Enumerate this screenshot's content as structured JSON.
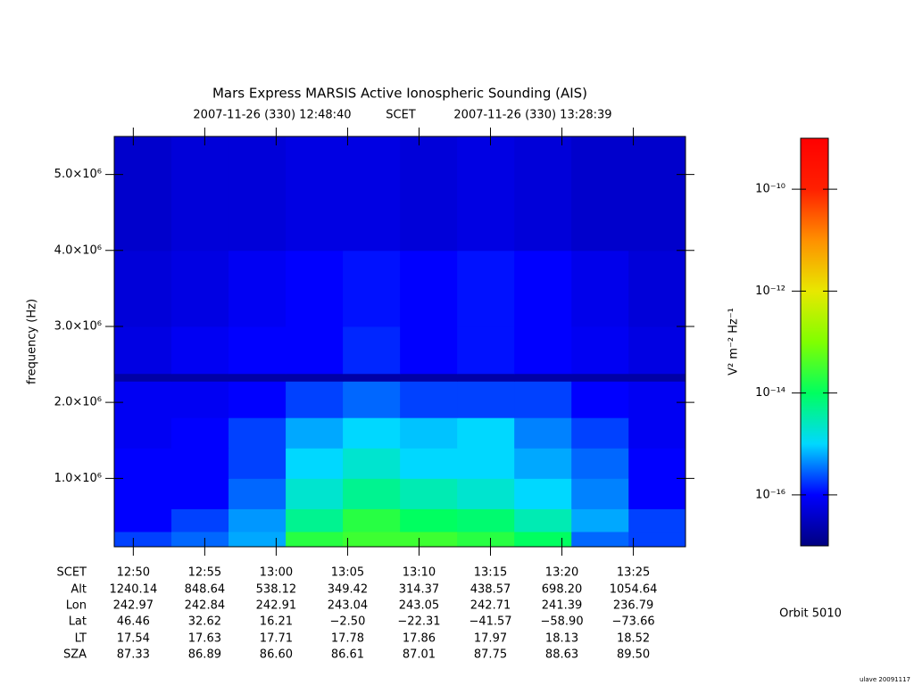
{
  "chart_data": {
    "type": "heatmap",
    "title": "Mars Express MARSIS Active Ionospheric Sounding (AIS)",
    "subtitle_start": "2007-11-26 (330) 12:48:40",
    "subtitle_mid": "SCET",
    "subtitle_end": "2007-11-26 (330) 13:28:39",
    "ylabel": "frequency (Hz)",
    "xlim": [
      "12:48:40",
      "13:28:39"
    ],
    "xticks": [
      "12:50",
      "12:55",
      "13:00",
      "13:05",
      "13:10",
      "13:15",
      "13:20",
      "13:25"
    ],
    "ylim": [
      100000,
      5500000
    ],
    "yticks": [
      {
        "value": 1000000,
        "label": "1.0×10⁶"
      },
      {
        "value": 2000000,
        "label": "2.0×10⁶"
      },
      {
        "value": 3000000,
        "label": "3.0×10⁶"
      },
      {
        "value": 4000000,
        "label": "4.0×10⁶"
      },
      {
        "value": 5000000,
        "label": "5.0×10⁶"
      }
    ],
    "xbins": [
      "12:48:40",
      "12:52:40",
      "12:56:40",
      "13:00:40",
      "13:04:40",
      "13:08:40",
      "13:12:40",
      "13:16:40",
      "13:20:40",
      "13:24:40",
      "13:28:39"
    ],
    "ybins": [
      100000,
      300000,
      600000,
      1000000,
      1400000,
      1800000,
      2280000,
      2380000,
      3000000,
      4000000,
      5500000
    ],
    "z": [
      [
        2e-16,
        3e-16,
        6e-16,
        2e-14,
        3e-14,
        3e-14,
        2e-14,
        1e-14,
        3e-16,
        2e-16
      ],
      [
        1e-16,
        2e-16,
        5e-16,
        5e-15,
        2e-14,
        1e-14,
        8e-15,
        3e-15,
        6e-16,
        2e-16
      ],
      [
        1e-16,
        1e-16,
        3e-16,
        2e-15,
        5e-15,
        3e-15,
        2e-15,
        1e-15,
        4e-16,
        1e-16
      ],
      [
        1e-16,
        1e-16,
        2e-16,
        1e-15,
        2e-15,
        1e-15,
        1e-15,
        6e-16,
        3e-16,
        1e-16
      ],
      [
        8e-17,
        1e-16,
        2e-16,
        6e-16,
        1e-15,
        8e-16,
        1e-15,
        4e-16,
        2e-16,
        8e-17
      ],
      [
        8e-17,
        8e-17,
        1e-16,
        2e-16,
        3e-16,
        2e-16,
        2e-16,
        2e-16,
        1e-16,
        8e-17
      ],
      [
        2e-17,
        2e-17,
        2e-17,
        2e-17,
        2e-17,
        2e-17,
        2e-17,
        2e-17,
        2e-17,
        2e-17
      ],
      [
        6e-17,
        8e-17,
        1e-16,
        1e-16,
        1.5e-16,
        1e-16,
        1.2e-16,
        1e-16,
        8e-17,
        6e-17
      ],
      [
        5e-17,
        6e-17,
        8e-17,
        1e-16,
        1.2e-16,
        1e-16,
        1.2e-16,
        1e-16,
        7e-17,
        5e-17
      ],
      [
        4e-17,
        5e-17,
        5e-17,
        6e-17,
        6e-17,
        5e-17,
        6e-17,
        5e-17,
        4e-17,
        4e-17
      ]
    ],
    "zlog": true,
    "zlim": [
      1e-17,
      1e-09
    ],
    "zticks": [
      {
        "value": 1e-10,
        "label": "10⁻¹⁰"
      },
      {
        "value": 1e-12,
        "label": "10⁻¹²"
      },
      {
        "value": 1e-14,
        "label": "10⁻¹⁴"
      },
      {
        "value": 1e-16,
        "label": "10⁻¹⁶"
      }
    ],
    "zlabel": "V² m⁻² Hz⁻¹",
    "colormap": [
      "#000080",
      "#0000ff",
      "#00d8ff",
      "#00ff60",
      "#80ff00",
      "#e8e800",
      "#ff9000",
      "#ff2000",
      "#ff0000"
    ],
    "ephemeris": {
      "labels": [
        "SCET",
        "Alt",
        "Lon",
        "Lat",
        "LT",
        "SZA"
      ],
      "rows": [
        [
          "1240.14",
          "848.64",
          "538.12",
          "349.42",
          "314.37",
          "438.57",
          "698.20",
          "1054.64"
        ],
        [
          "242.97",
          "242.84",
          "242.91",
          "243.04",
          "243.05",
          "242.71",
          "241.39",
          "236.79"
        ],
        [
          "46.46",
          "32.62",
          "16.21",
          "−2.50",
          "−22.31",
          "−41.57",
          "−58.90",
          "−73.66"
        ],
        [
          "17.54",
          "17.63",
          "17.71",
          "17.78",
          "17.86",
          "17.97",
          "18.13",
          "18.52"
        ],
        [
          "87.33",
          "86.89",
          "86.60",
          "86.61",
          "87.01",
          "87.75",
          "88.63",
          "89.50"
        ]
      ]
    },
    "orbit": "Orbit 5010",
    "footer": "ulave 20091117"
  }
}
